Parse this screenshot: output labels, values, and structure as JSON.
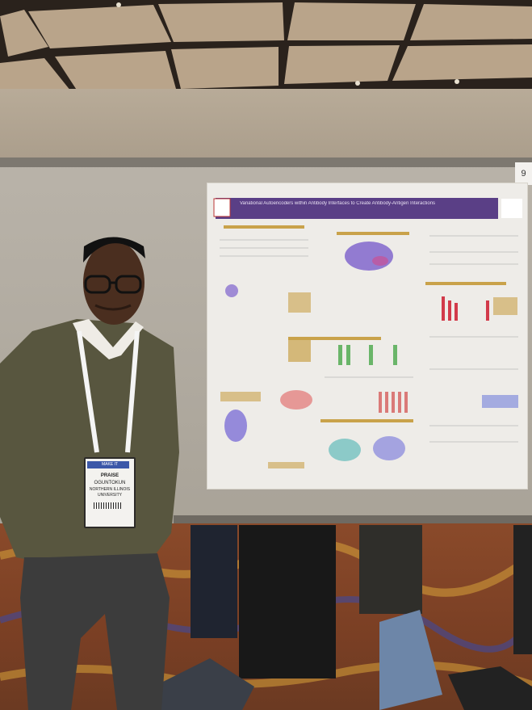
{
  "scene": {
    "description_colors": {
      "ceiling": "#2a221c",
      "board": "#b3ada3",
      "poster_header": "#5a3f86",
      "sweater": "#58563f",
      "carpet": "#8a4a2a"
    }
  },
  "poster": {
    "title": "Variational Autoencoders within Antibody Interfaces to Create Antibody-Antigen Interactions"
  },
  "badge": {
    "event_logo": "MAKE IT",
    "first_name": "PRAISE",
    "last_name": "OGUNTOKUN",
    "affiliation_line1": "NORTHERN ILLINOIS",
    "affiliation_line2": "UNIVERSITY"
  },
  "board_number": "9"
}
